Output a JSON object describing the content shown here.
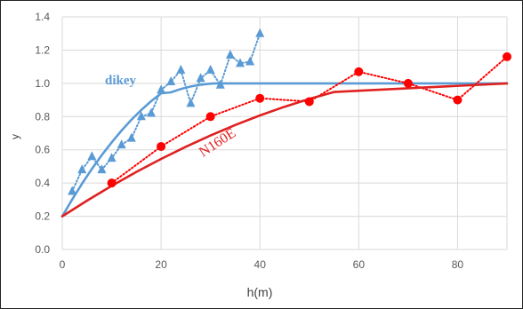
{
  "chart_data": {
    "type": "scatter",
    "title": "",
    "xlabel": "h(m)",
    "ylabel": "y",
    "xlim": [
      0,
      90
    ],
    "ylim": [
      0.0,
      1.4
    ],
    "x_ticks": [
      "0",
      "20",
      "40",
      "60",
      "80"
    ],
    "y_ticks": [
      "0.0",
      "0.2",
      "0.4",
      "0.6",
      "0.8",
      "1.0",
      "1.2",
      "1.4"
    ],
    "grid": true,
    "annotations": [
      "dikey",
      "N160E"
    ],
    "series": [
      {
        "name": "dikey",
        "style": "dotted-with-triangle-markers",
        "color": "#5b9bd5",
        "x": [
          2,
          4,
          6,
          8,
          10,
          12,
          14,
          16,
          18,
          20,
          22,
          24,
          26,
          28,
          30,
          32,
          34,
          36,
          38,
          40
        ],
        "y": [
          0.35,
          0.48,
          0.56,
          0.48,
          0.55,
          0.63,
          0.67,
          0.8,
          0.82,
          0.96,
          1.01,
          1.08,
          0.88,
          1.03,
          1.08,
          0.99,
          1.17,
          1.12,
          1.13,
          1.3
        ]
      },
      {
        "name": "dikey fit",
        "style": "solid",
        "color": "#5b9bd5",
        "x": [
          0,
          2,
          4,
          6,
          8,
          10,
          12,
          14,
          16,
          18,
          20,
          22,
          24,
          26,
          28,
          30,
          31,
          90
        ],
        "y": [
          0.2,
          0.301,
          0.396,
          0.485,
          0.568,
          0.645,
          0.716,
          0.781,
          0.84,
          0.893,
          0.94,
          0.946,
          0.966,
          0.981,
          0.992,
          0.998,
          1.0,
          1.0
        ]
      },
      {
        "name": "N160E",
        "style": "dotted-with-circle-markers",
        "color": "#ff0000",
        "x": [
          10,
          20,
          30,
          40,
          50,
          60,
          70,
          80,
          90
        ],
        "y": [
          0.4,
          0.62,
          0.8,
          0.91,
          0.89,
          1.07,
          1.0,
          0.9,
          1.16
        ]
      },
      {
        "name": "N160E fit",
        "style": "solid",
        "color": "#e02020",
        "x": [
          0,
          5,
          10,
          15,
          20,
          25,
          30,
          35,
          40,
          45,
          50,
          55,
          90
        ],
        "y": [
          0.2,
          0.294,
          0.383,
          0.467,
          0.545,
          0.618,
          0.686,
          0.749,
          0.807,
          0.859,
          0.906,
          0.948,
          1.0
        ]
      }
    ]
  }
}
